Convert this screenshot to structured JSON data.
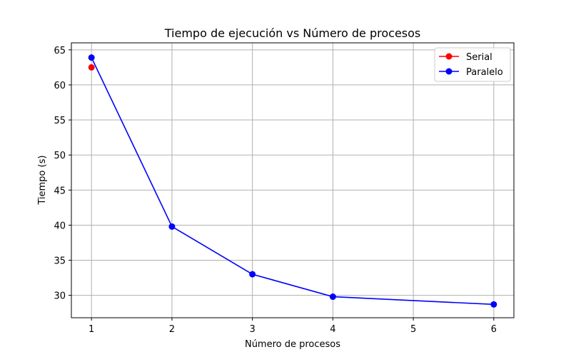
{
  "chart_data": {
    "type": "line",
    "title": "Tiempo de ejecución vs Número de procesos",
    "xlabel": "Número de procesos",
    "ylabel": "Tiempo (s)",
    "xlim": [
      0.75,
      6.25
    ],
    "ylim": [
      26.8,
      66.0
    ],
    "xticks": [
      1,
      2,
      3,
      4,
      5,
      6
    ],
    "yticks": [
      30,
      35,
      40,
      45,
      50,
      55,
      60,
      65
    ],
    "grid": true,
    "legend_position": "top-right",
    "series": [
      {
        "name": "Serial",
        "color": "#ff0000",
        "marker": "circle",
        "x": [
          1
        ],
        "y": [
          62.5
        ]
      },
      {
        "name": "Paralelo",
        "color": "#0000ff",
        "marker": "circle",
        "x": [
          1,
          2,
          3,
          4,
          6
        ],
        "y": [
          63.9,
          39.8,
          33.0,
          29.8,
          28.7
        ]
      }
    ]
  }
}
